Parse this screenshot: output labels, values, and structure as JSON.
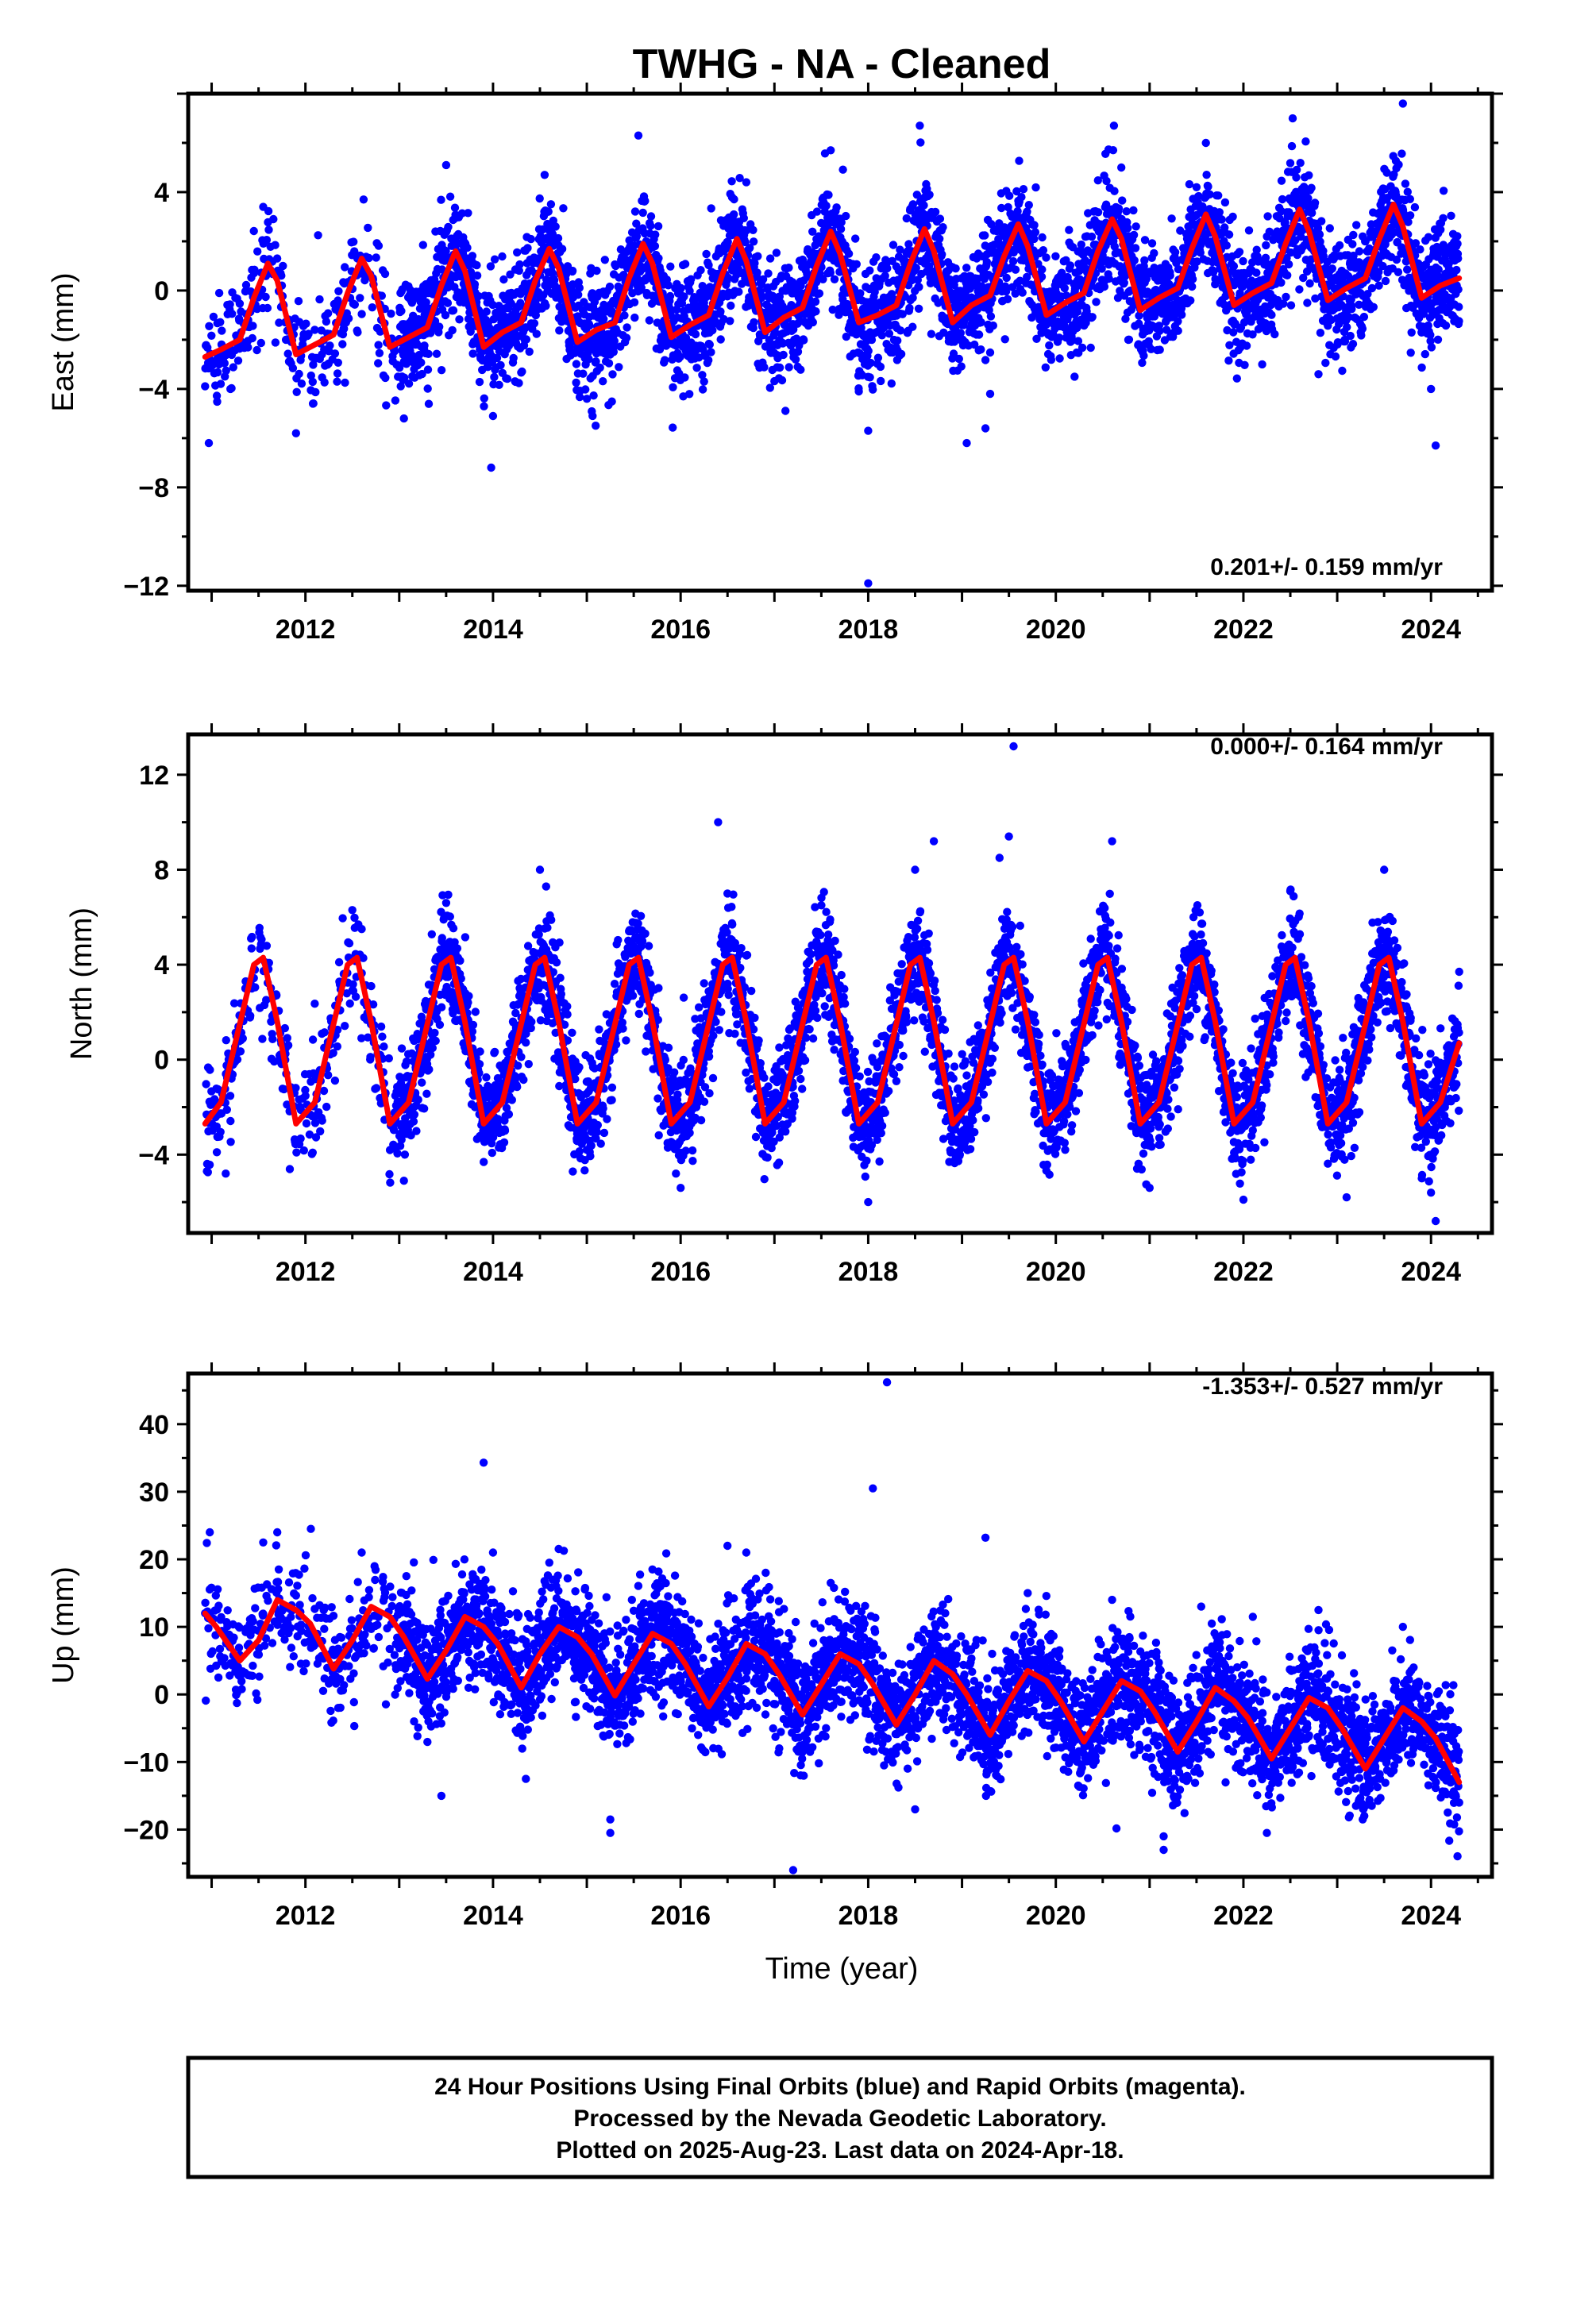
{
  "title": "TWHG  - NA - Cleaned",
  "xlabel": "Time (year)",
  "footer": {
    "line1": "24 Hour Positions Using Final Orbits (blue) and Rapid Orbits (magenta).",
    "line2": "Processed by the Nevada Geodetic Laboratory.",
    "line3": "Plotted on 2025-Aug-23. Last data on 2024-Apr-18."
  },
  "colors": {
    "points": "#0000ff",
    "model": "#ff0000",
    "frame": "#000000"
  },
  "chart_data": [
    {
      "type": "scatter",
      "ylabel": "East (mm)",
      "rate_text": "0.201+/- 0.159 mm/yr",
      "xlim": [
        2010.75,
        2024.65
      ],
      "ylim": [
        -12.2,
        8.0
      ],
      "xticks": [
        2012,
        2014,
        2016,
        2018,
        2020,
        2022,
        2024
      ],
      "yticks": [
        4,
        0,
        -4,
        -8,
        -12
      ],
      "ytick_labels": [
        "4",
        "0",
        "−4",
        "−8",
        "−12"
      ],
      "series": [
        {
          "type": "line",
          "x": [
            2010.93,
            2011.1,
            2011.3,
            2011.45,
            2011.6,
            2011.7,
            2011.9,
            2012.1,
            2012.3,
            2012.45,
            2012.6,
            2012.7,
            2012.9,
            2013.1,
            2013.3,
            2013.45,
            2013.6,
            2013.7,
            2013.9,
            2014.1,
            2014.3,
            2014.45,
            2014.6,
            2014.7,
            2014.9,
            2015.1,
            2015.3,
            2015.45,
            2015.6,
            2015.7,
            2015.9,
            2016.1,
            2016.3,
            2016.45,
            2016.6,
            2016.7,
            2016.9,
            2017.1,
            2017.3,
            2017.45,
            2017.6,
            2017.7,
            2017.9,
            2018.1,
            2018.3,
            2018.45,
            2018.6,
            2018.7,
            2018.9,
            2019.1,
            2019.3,
            2019.45,
            2019.6,
            2019.7,
            2019.9,
            2020.1,
            2020.3,
            2020.45,
            2020.6,
            2020.7,
            2020.9,
            2021.1,
            2021.3,
            2021.45,
            2021.6,
            2021.7,
            2021.9,
            2022.1,
            2022.3,
            2022.45,
            2022.6,
            2022.7,
            2022.9,
            2023.1,
            2023.3,
            2023.45,
            2023.6,
            2023.7,
            2023.9,
            2024.1,
            2024.3
          ],
          "y": [
            -2.7,
            -2.4,
            -2.0,
            -0.3,
            1.1,
            0.4,
            -2.6,
            -2.2,
            -1.8,
            -0.1,
            1.3,
            0.6,
            -2.3,
            -1.9,
            -1.5,
            0.2,
            1.6,
            0.8,
            -2.3,
            -1.7,
            -1.3,
            0.4,
            1.7,
            0.9,
            -2.1,
            -1.6,
            -1.3,
            0.5,
            1.9,
            1.1,
            -1.9,
            -1.4,
            -1.0,
            0.7,
            2.1,
            1.2,
            -1.7,
            -1.1,
            -0.7,
            1.0,
            2.4,
            1.5,
            -1.3,
            -1.0,
            -0.6,
            1.1,
            2.5,
            1.6,
            -1.3,
            -0.6,
            -0.2,
            1.4,
            2.7,
            1.8,
            -1.0,
            -0.5,
            -0.1,
            1.6,
            2.9,
            2.1,
            -0.8,
            -0.3,
            0.1,
            1.7,
            3.1,
            2.2,
            -0.6,
            -0.1,
            0.3,
            1.9,
            3.3,
            2.4,
            -0.4,
            0.1,
            0.5,
            2.1,
            3.5,
            2.6,
            -0.3,
            0.2,
            0.5
          ]
        }
      ],
      "outliers": [
        [
          2010.97,
          -6.2
        ],
        [
          2011.2,
          -4.0
        ],
        [
          2011.55,
          3.4
        ],
        [
          2011.9,
          -5.8
        ],
        [
          2012.62,
          3.7
        ],
        [
          2013.05,
          -5.2
        ],
        [
          2013.5,
          5.1
        ],
        [
          2013.98,
          -7.2
        ],
        [
          2014.0,
          -5.1
        ],
        [
          2014.55,
          4.7
        ],
        [
          2015.0,
          -4.4
        ],
        [
          2015.55,
          6.3
        ],
        [
          2016.25,
          -3.7
        ],
        [
          2016.7,
          4.4
        ],
        [
          2017.6,
          5.7
        ],
        [
          2017.9,
          -4.1
        ],
        [
          2018.0,
          -5.7
        ],
        [
          2018.0,
          -11.9
        ],
        [
          2018.55,
          6.7
        ],
        [
          2019.05,
          -6.2
        ],
        [
          2019.25,
          -5.6
        ],
        [
          2019.3,
          -4.2
        ],
        [
          2020.2,
          -3.5
        ],
        [
          2020.62,
          6.7
        ],
        [
          2021.6,
          6.0
        ],
        [
          2021.5,
          4.2
        ],
        [
          2022.2,
          -3.0
        ],
        [
          2022.8,
          -3.4
        ],
        [
          2023.7,
          7.6
        ],
        [
          2024.05,
          -6.3
        ],
        [
          2024.0,
          -4.0
        ]
      ]
    },
    {
      "type": "scatter",
      "ylabel": "North (mm)",
      "rate_text": "0.000+/- 0.164 mm/yr",
      "xlim": [
        2010.75,
        2024.65
      ],
      "ylim": [
        -7.3,
        13.7
      ],
      "xticks": [
        2012,
        2014,
        2016,
        2018,
        2020,
        2022,
        2024
      ],
      "yticks": [
        12,
        8,
        4,
        0,
        -4
      ],
      "ytick_labels": [
        "12",
        "8",
        "4",
        "0",
        "−4"
      ],
      "series": [
        {
          "type": "line",
          "x": [
            2010.93,
            2011.1,
            2011.3,
            2011.45,
            2011.55,
            2011.7,
            2011.9,
            2012.1,
            2012.3,
            2012.45,
            2012.55,
            2012.7,
            2012.9,
            2013.1,
            2013.3,
            2013.45,
            2013.55,
            2013.7,
            2013.9,
            2014.1,
            2014.3,
            2014.45,
            2014.55,
            2014.7,
            2014.9,
            2015.1,
            2015.3,
            2015.45,
            2015.55,
            2015.7,
            2015.9,
            2016.1,
            2016.3,
            2016.45,
            2016.55,
            2016.7,
            2016.9,
            2017.1,
            2017.3,
            2017.45,
            2017.55,
            2017.7,
            2017.9,
            2018.1,
            2018.3,
            2018.45,
            2018.55,
            2018.7,
            2018.9,
            2019.1,
            2019.3,
            2019.45,
            2019.55,
            2019.7,
            2019.9,
            2020.1,
            2020.3,
            2020.45,
            2020.55,
            2020.7,
            2020.9,
            2021.1,
            2021.3,
            2021.45,
            2021.55,
            2021.7,
            2021.9,
            2022.1,
            2022.3,
            2022.45,
            2022.55,
            2022.7,
            2022.9,
            2023.1,
            2023.3,
            2023.45,
            2023.55,
            2023.7,
            2023.9,
            2024.1,
            2024.3
          ],
          "y": [
            -2.7,
            -1.8,
            1.5,
            4.0,
            4.3,
            1.6,
            -2.7,
            -1.8,
            1.5,
            4.0,
            4.3,
            1.6,
            -2.7,
            -1.8,
            1.5,
            4.0,
            4.3,
            1.6,
            -2.7,
            -1.8,
            1.5,
            4.0,
            4.3,
            1.6,
            -2.7,
            -1.8,
            1.5,
            4.0,
            4.3,
            1.6,
            -2.7,
            -1.8,
            1.5,
            4.0,
            4.3,
            1.6,
            -2.7,
            -1.8,
            1.5,
            4.0,
            4.3,
            1.6,
            -2.7,
            -1.8,
            1.5,
            4.0,
            4.3,
            1.6,
            -2.7,
            -1.8,
            1.5,
            4.0,
            4.3,
            1.6,
            -2.7,
            -1.8,
            1.5,
            4.0,
            4.3,
            1.6,
            -2.7,
            -1.8,
            1.5,
            4.0,
            4.3,
            1.6,
            -2.7,
            -1.8,
            1.5,
            4.0,
            4.3,
            1.6,
            -2.7,
            -1.8,
            1.5,
            4.0,
            4.3,
            1.6,
            -2.7,
            -1.8,
            0.7
          ]
        }
      ],
      "outliers": [
        [
          2010.95,
          -4.7
        ],
        [
          2011.15,
          -4.8
        ],
        [
          2012.5,
          6.3
        ],
        [
          2012.6,
          5.5
        ],
        [
          2013.05,
          -5.1
        ],
        [
          2013.5,
          6.6
        ],
        [
          2014.5,
          8.0
        ],
        [
          2015.0,
          -3.8
        ],
        [
          2015.95,
          -4.8
        ],
        [
          2016.0,
          -5.4
        ],
        [
          2016.4,
          10.0
        ],
        [
          2016.5,
          7.0
        ],
        [
          2017.5,
          6.5
        ],
        [
          2018.0,
          -6.0
        ],
        [
          2018.5,
          8.0
        ],
        [
          2018.7,
          9.2
        ],
        [
          2019.55,
          13.2
        ],
        [
          2019.5,
          9.4
        ],
        [
          2019.4,
          8.5
        ],
        [
          2020.6,
          9.2
        ],
        [
          2020.1,
          -3.8
        ],
        [
          2021.0,
          -5.4
        ],
        [
          2022.0,
          -5.9
        ],
        [
          2022.5,
          7.1
        ],
        [
          2023.1,
          -5.8
        ],
        [
          2023.5,
          8.0
        ],
        [
          2024.05,
          -6.8
        ],
        [
          2024.0,
          -5.6
        ],
        [
          2024.3,
          3.7
        ]
      ]
    },
    {
      "type": "scatter",
      "ylabel": "Up (mm)",
      "rate_text": "-1.353+/- 0.527 mm/yr",
      "xlim": [
        2010.75,
        2024.65
      ],
      "ylim": [
        -27.0,
        47.5
      ],
      "xticks": [
        2012,
        2014,
        2016,
        2018,
        2020,
        2022,
        2024
      ],
      "yticks": [
        40,
        30,
        20,
        10,
        0,
        -10,
        -20
      ],
      "ytick_labels": [
        "40",
        "30",
        "20",
        "10",
        "0",
        "−10",
        "−20"
      ],
      "series": [
        {
          "type": "line",
          "x": [
            2010.93,
            2011.05,
            2011.3,
            2011.5,
            2011.7,
            2011.9,
            2012.05,
            2012.3,
            2012.5,
            2012.7,
            2012.9,
            2013.05,
            2013.3,
            2013.5,
            2013.7,
            2013.9,
            2014.05,
            2014.3,
            2014.5,
            2014.7,
            2014.9,
            2015.05,
            2015.3,
            2015.5,
            2015.7,
            2015.9,
            2016.05,
            2016.3,
            2016.5,
            2016.7,
            2016.9,
            2017.05,
            2017.3,
            2017.5,
            2017.7,
            2017.9,
            2018.05,
            2018.3,
            2018.5,
            2018.7,
            2018.9,
            2019.05,
            2019.3,
            2019.5,
            2019.7,
            2019.9,
            2020.05,
            2020.3,
            2020.5,
            2020.7,
            2020.9,
            2021.05,
            2021.3,
            2021.5,
            2021.7,
            2021.9,
            2022.05,
            2022.3,
            2022.5,
            2022.7,
            2022.9,
            2023.05,
            2023.3,
            2023.5,
            2023.7,
            2023.9,
            2024.05,
            2024.3
          ],
          "y": [
            12.0,
            10.0,
            5.0,
            8.0,
            14.0,
            12.5,
            10.5,
            3.8,
            8.0,
            13.0,
            11.5,
            8.5,
            2.3,
            6.5,
            11.5,
            10.0,
            7.5,
            1.0,
            6.0,
            10.0,
            8.5,
            6.0,
            -0.2,
            4.5,
            9.0,
            7.5,
            4.5,
            -1.8,
            2.5,
            7.5,
            6.0,
            3.0,
            -3.0,
            1.5,
            6.0,
            4.5,
            1.5,
            -4.5,
            0.0,
            5.0,
            3.0,
            0.0,
            -6.0,
            -1.0,
            3.5,
            2.0,
            -1.0,
            -7.0,
            -2.5,
            2.0,
            0.5,
            -2.5,
            -8.5,
            -4.0,
            1.0,
            -1.0,
            -3.5,
            -9.5,
            -5.0,
            -0.5,
            -2.0,
            -5.0,
            -11.0,
            -6.5,
            -2.0,
            -4.0,
            -6.5,
            -13.0
          ]
        }
      ],
      "outliers": [
        [
          2010.98,
          24.0
        ],
        [
          2011.55,
          22.5
        ],
        [
          2011.7,
          24.0
        ],
        [
          2012.35,
          -2.0
        ],
        [
          2012.6,
          21.0
        ],
        [
          2013.45,
          -15.0
        ],
        [
          2013.9,
          34.3
        ],
        [
          2014.35,
          -12.5
        ],
        [
          2014.0,
          21.0
        ],
        [
          2014.6,
          19.5
        ],
        [
          2015.25,
          -18.5
        ],
        [
          2015.25,
          -20.5
        ],
        [
          2015.7,
          18.5
        ],
        [
          2016.5,
          22.0
        ],
        [
          2016.7,
          21.0
        ],
        [
          2017.2,
          -26.0
        ],
        [
          2017.6,
          16.5
        ],
        [
          2018.05,
          30.5
        ],
        [
          2018.2,
          46.2
        ],
        [
          2018.5,
          -17.0
        ],
        [
          2019.25,
          23.2
        ],
        [
          2019.7,
          15.0
        ],
        [
          2020.6,
          14.0
        ],
        [
          2021.15,
          -21.0
        ],
        [
          2021.15,
          -23.0
        ],
        [
          2021.55,
          13.0
        ],
        [
          2022.1,
          11.5
        ],
        [
          2022.25,
          -20.5
        ],
        [
          2022.8,
          12.5
        ],
        [
          2023.2,
          -16.5
        ],
        [
          2023.7,
          10.0
        ],
        [
          2024.3,
          -16.0
        ]
      ]
    }
  ]
}
